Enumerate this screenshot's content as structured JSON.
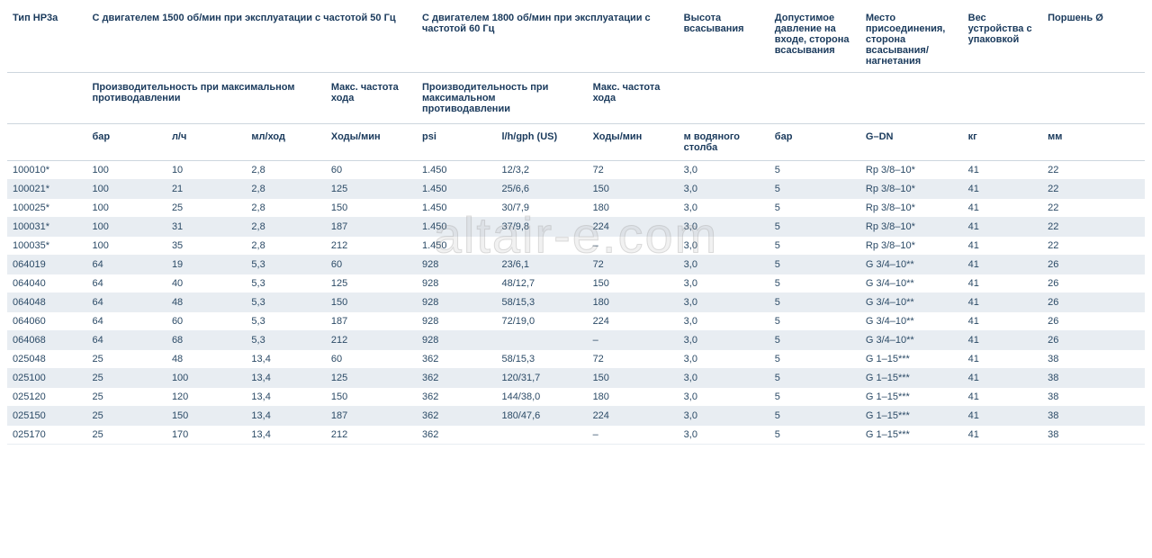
{
  "watermark": "altair-e.com",
  "colgroups": [
    7,
    7,
    7,
    7,
    8,
    7,
    8,
    8,
    8,
    8,
    9,
    7,
    9
  ],
  "header": {
    "row1": [
      {
        "text": "Тип HP3a",
        "colspan": 1
      },
      {
        "text": "С двигателем 1500 об/мин при эксплуатации с частотой 50 Гц",
        "colspan": 4
      },
      {
        "text": "С двигателем 1800 об/мин при эксплуатации с частотой 60 Гц",
        "colspan": 3
      },
      {
        "text": "Высота всасывания",
        "colspan": 1
      },
      {
        "text": "Допустимое давление на входе, сторона всасывания",
        "colspan": 1
      },
      {
        "text": "Место присоединения, сторона всасывания/ нагнетания",
        "colspan": 1
      },
      {
        "text": "Вес устройства с упаковкой",
        "colspan": 1
      },
      {
        "text": "Поршень Ø",
        "colspan": 1
      }
    ],
    "row2": [
      {
        "text": "",
        "colspan": 1
      },
      {
        "text": "Производительность при максимальном противодавлении",
        "colspan": 3
      },
      {
        "text": "Макс. частота хода",
        "colspan": 1
      },
      {
        "text": "Производительность при максимальном противодавлении",
        "colspan": 2
      },
      {
        "text": "Макс. частота хода",
        "colspan": 1
      },
      {
        "text": "",
        "colspan": 1
      },
      {
        "text": "",
        "colspan": 1
      },
      {
        "text": "",
        "colspan": 1
      },
      {
        "text": "",
        "colspan": 1
      },
      {
        "text": "",
        "colspan": 1
      }
    ],
    "row3": [
      "",
      "бар",
      "л/ч",
      "мл/ход",
      "Ходы/мин",
      "psi",
      "l/h/gph (US)",
      "Ходы/мин",
      "м водяного столба",
      "бар",
      "G–DN",
      "кг",
      "мм"
    ]
  },
  "rows": [
    [
      "100010*",
      "100",
      "10",
      "2,8",
      "60",
      "1.450",
      "12/3,2",
      "72",
      "3,0",
      "5",
      "Rp 3/8–10*",
      "41",
      "22"
    ],
    [
      "100021*",
      "100",
      "21",
      "2,8",
      "125",
      "1.450",
      "25/6,6",
      "150",
      "3,0",
      "5",
      "Rp 3/8–10*",
      "41",
      "22"
    ],
    [
      "100025*",
      "100",
      "25",
      "2,8",
      "150",
      "1.450",
      "30/7,9",
      "180",
      "3,0",
      "5",
      "Rp 3/8–10*",
      "41",
      "22"
    ],
    [
      "100031*",
      "100",
      "31",
      "2,8",
      "187",
      "1.450",
      "37/9,8",
      "224",
      "3,0",
      "5",
      "Rp 3/8–10*",
      "41",
      "22"
    ],
    [
      "100035*",
      "100",
      "35",
      "2,8",
      "212",
      "1.450",
      "",
      "–",
      "3,0",
      "5",
      "Rp 3/8–10*",
      "41",
      "22"
    ],
    [
      "064019",
      "64",
      "19",
      "5,3",
      "60",
      "928",
      "23/6,1",
      "72",
      "3,0",
      "5",
      "G 3/4–10**",
      "41",
      "26"
    ],
    [
      "064040",
      "64",
      "40",
      "5,3",
      "125",
      "928",
      "48/12,7",
      "150",
      "3,0",
      "5",
      "G 3/4–10**",
      "41",
      "26"
    ],
    [
      "064048",
      "64",
      "48",
      "5,3",
      "150",
      "928",
      "58/15,3",
      "180",
      "3,0",
      "5",
      "G 3/4–10**",
      "41",
      "26"
    ],
    [
      "064060",
      "64",
      "60",
      "5,3",
      "187",
      "928",
      "72/19,0",
      "224",
      "3,0",
      "5",
      "G 3/4–10**",
      "41",
      "26"
    ],
    [
      "064068",
      "64",
      "68",
      "5,3",
      "212",
      "928",
      "",
      "–",
      "3,0",
      "5",
      "G 3/4–10**",
      "41",
      "26"
    ],
    [
      "025048",
      "25",
      "48",
      "13,4",
      "60",
      "362",
      "58/15,3",
      "72",
      "3,0",
      "5",
      "G 1–15***",
      "41",
      "38"
    ],
    [
      "025100",
      "25",
      "100",
      "13,4",
      "125",
      "362",
      "120/31,7",
      "150",
      "3,0",
      "5",
      "G 1–15***",
      "41",
      "38"
    ],
    [
      "025120",
      "25",
      "120",
      "13,4",
      "150",
      "362",
      "144/38,0",
      "180",
      "3,0",
      "5",
      "G 1–15***",
      "41",
      "38"
    ],
    [
      "025150",
      "25",
      "150",
      "13,4",
      "187",
      "362",
      "180/47,6",
      "224",
      "3,0",
      "5",
      "G 1–15***",
      "41",
      "38"
    ],
    [
      "025170",
      "25",
      "170",
      "13,4",
      "212",
      "362",
      "",
      "–",
      "3,0",
      "5",
      "G 1–15***",
      "41",
      "38"
    ]
  ]
}
